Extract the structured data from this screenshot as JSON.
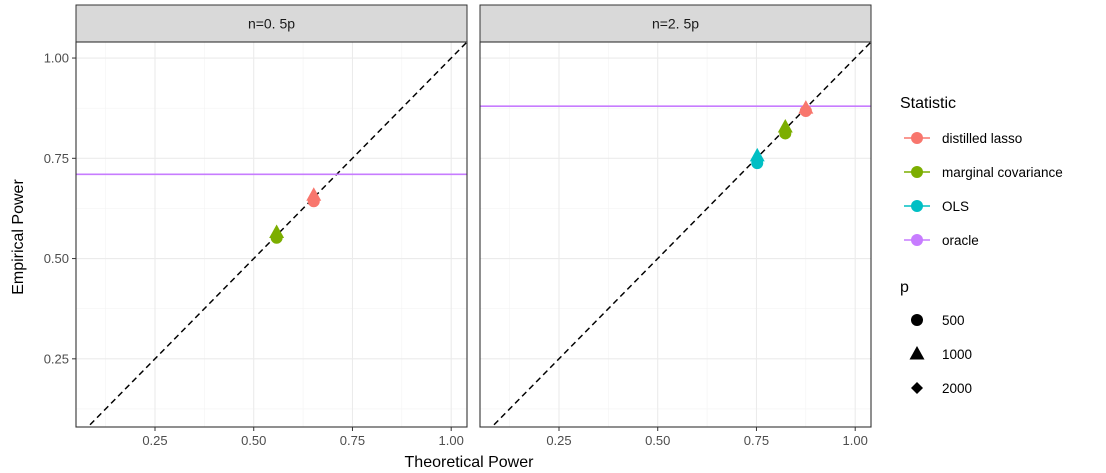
{
  "chart_data": {
    "type": "scatter",
    "xlabel": "Theoretical Power",
    "ylabel": "Empirical Power",
    "xlim": [
      0.05,
      1.04
    ],
    "ylim": [
      0.08,
      1.04
    ],
    "x_ticks": [
      0.25,
      0.5,
      0.75,
      1.0
    ],
    "x_tick_labels": [
      "0.25",
      "0.50",
      "0.75",
      "1.00"
    ],
    "y_ticks": [
      0.25,
      0.5,
      0.75,
      1.0
    ],
    "y_tick_labels": [
      "0.25",
      "0.50",
      "0.75",
      "1.00"
    ],
    "grid": true,
    "reference_line": "y = x (dashed)",
    "legend_position": "right",
    "color_legend": {
      "title": "Statistic",
      "entries": [
        {
          "label": "distilled lasso",
          "color": "#F8766D"
        },
        {
          "label": "marginal covariance",
          "color": "#7CAE00"
        },
        {
          "label": "OLS",
          "color": "#00BFC4"
        },
        {
          "label": "oracle",
          "color": "#C77CFF"
        }
      ]
    },
    "shape_legend": {
      "title": "p",
      "entries": [
        {
          "label": "500",
          "shape": "circle"
        },
        {
          "label": "1000",
          "shape": "triangle"
        },
        {
          "label": "2000",
          "shape": "diamond"
        }
      ]
    },
    "panels": [
      {
        "strip": "n=0. 5p",
        "oracle_line_y": 0.71,
        "points": [
          {
            "statistic": "distilled lasso",
            "p": "500",
            "x": 0.652,
            "y": 0.643
          },
          {
            "statistic": "distilled lasso",
            "p": "1000",
            "x": 0.652,
            "y": 0.658
          },
          {
            "statistic": "distilled lasso",
            "p": "2000",
            "x": 0.652,
            "y": 0.648
          },
          {
            "statistic": "marginal covariance",
            "p": "500",
            "x": 0.558,
            "y": 0.552
          },
          {
            "statistic": "marginal covariance",
            "p": "1000",
            "x": 0.558,
            "y": 0.565
          },
          {
            "statistic": "marginal covariance",
            "p": "2000",
            "x": 0.558,
            "y": 0.558
          }
        ]
      },
      {
        "strip": "n=2. 5p",
        "oracle_line_y": 0.88,
        "points": [
          {
            "statistic": "distilled lasso",
            "p": "500",
            "x": 0.875,
            "y": 0.868
          },
          {
            "statistic": "distilled lasso",
            "p": "1000",
            "x": 0.875,
            "y": 0.875
          },
          {
            "statistic": "distilled lasso",
            "p": "2000",
            "x": 0.875,
            "y": 0.872
          },
          {
            "statistic": "marginal covariance",
            "p": "500",
            "x": 0.823,
            "y": 0.812
          },
          {
            "statistic": "marginal covariance",
            "p": "1000",
            "x": 0.823,
            "y": 0.828
          },
          {
            "statistic": "marginal covariance",
            "p": "2000",
            "x": 0.823,
            "y": 0.82
          },
          {
            "statistic": "OLS",
            "p": "500",
            "x": 0.752,
            "y": 0.738
          },
          {
            "statistic": "OLS",
            "p": "1000",
            "x": 0.752,
            "y": 0.756
          },
          {
            "statistic": "OLS",
            "p": "2000",
            "x": 0.752,
            "y": 0.747
          }
        ]
      }
    ]
  }
}
